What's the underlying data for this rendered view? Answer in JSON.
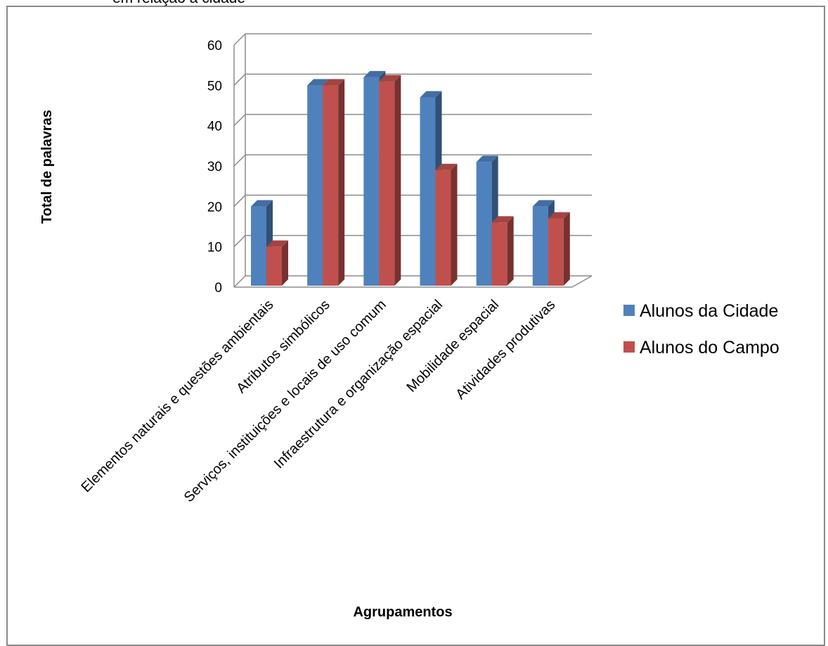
{
  "chart_title_partial": "em relação à cidade",
  "chart_data": {
    "type": "bar",
    "style": "3d-clustered-column",
    "categories": [
      "Elementos naturais e questões ambientais",
      "Atributos simbólicos",
      "Serviços, instituições e locais de uso comum",
      "Infraestrutura e organização espacial",
      "Mobilidade espacial",
      "Atividades produtivas"
    ],
    "series": [
      {
        "name": "Alunos da Cidade",
        "values": [
          20,
          50,
          52,
          47,
          31,
          20
        ],
        "color": "#4f81bd"
      },
      {
        "name": "Alunos do Campo",
        "values": [
          10,
          50,
          51,
          29,
          16,
          17
        ],
        "color": "#c0504d"
      }
    ],
    "xlabel": "Agrupamentos",
    "ylabel": "Total de palavras",
    "ylim": [
      0,
      60
    ],
    "yticks": [
      0,
      10,
      20,
      30,
      40,
      50,
      60
    ],
    "grid": true,
    "legend_position": "right"
  }
}
